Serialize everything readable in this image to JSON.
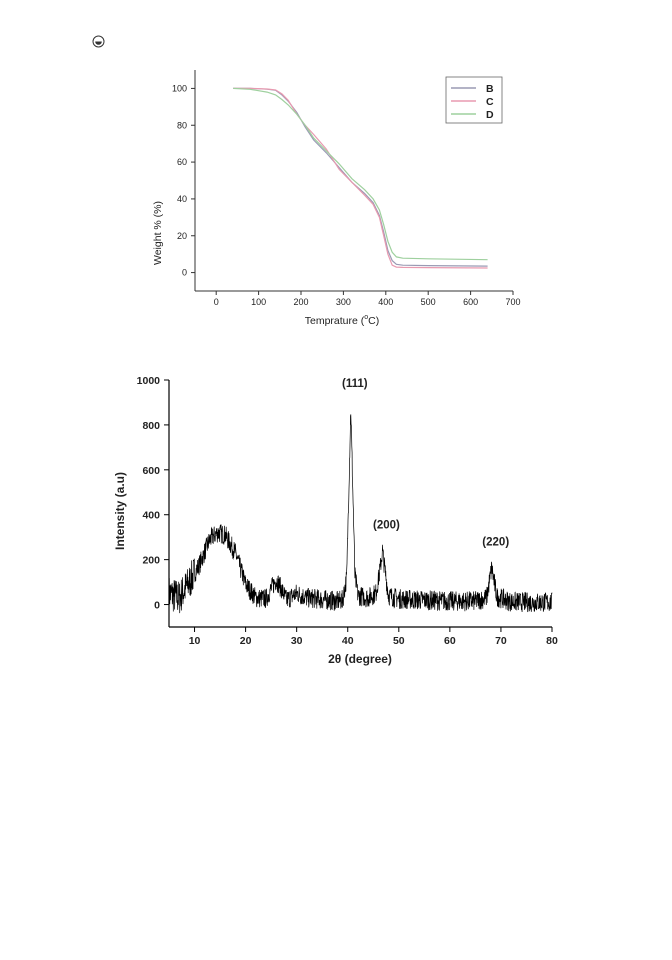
{
  "chart_data": [
    {
      "type": "line",
      "xlabel": "Temprature (",
      "xlabel_unit": "C)",
      "xlabel_superscript": "o",
      "ylabel": "Weight % (%)",
      "xlim": [
        -50,
        700
      ],
      "ylim": [
        -10,
        110
      ],
      "x_ticks": [
        0,
        100,
        200,
        300,
        400,
        500,
        600,
        700
      ],
      "y_ticks": [
        0,
        20,
        40,
        60,
        80,
        100
      ],
      "grid": false,
      "legend_position": "top-right",
      "series": [
        {
          "name": "B",
          "color": "#9a9ab4",
          "points": [
            [
              40,
              100
            ],
            [
              80,
              100
            ],
            [
              120,
              99.6
            ],
            [
              140,
              99
            ],
            [
              155,
              96.5
            ],
            [
              170,
              93
            ],
            [
              190,
              87
            ],
            [
              210,
              79
            ],
            [
              230,
              72
            ],
            [
              260,
              65
            ],
            [
              290,
              57
            ],
            [
              320,
              49
            ],
            [
              350,
              43
            ],
            [
              370,
              38
            ],
            [
              385,
              31
            ],
            [
              395,
              22
            ],
            [
              405,
              12
            ],
            [
              415,
              6.5
            ],
            [
              425,
              4.5
            ],
            [
              440,
              4
            ],
            [
              500,
              3.8
            ],
            [
              640,
              3.5
            ]
          ]
        },
        {
          "name": "C",
          "color": "#e89ab0",
          "points": [
            [
              40,
              100
            ],
            [
              80,
              100
            ],
            [
              120,
              99.7
            ],
            [
              140,
              99.2
            ],
            [
              155,
              97
            ],
            [
              170,
              93.5
            ],
            [
              190,
              86
            ],
            [
              210,
              80
            ],
            [
              230,
              75
            ],
            [
              260,
              67
            ],
            [
              290,
              56
            ],
            [
              320,
              49
            ],
            [
              350,
              42
            ],
            [
              370,
              37
            ],
            [
              385,
              30
            ],
            [
              395,
              20
            ],
            [
              405,
              10
            ],
            [
              415,
              4
            ],
            [
              425,
              3
            ],
            [
              440,
              2.8
            ],
            [
              500,
              2.7
            ],
            [
              640,
              2.5
            ]
          ]
        },
        {
          "name": "D",
          "color": "#9ed09e",
          "points": [
            [
              40,
              100
            ],
            [
              80,
              99.5
            ],
            [
              120,
              98
            ],
            [
              140,
              96.5
            ],
            [
              155,
              94
            ],
            [
              170,
              91
            ],
            [
              190,
              86
            ],
            [
              210,
              80
            ],
            [
              230,
              73
            ],
            [
              260,
              66
            ],
            [
              290,
              59
            ],
            [
              320,
              51
            ],
            [
              350,
              45
            ],
            [
              370,
              40
            ],
            [
              385,
              34
            ],
            [
              395,
              26
            ],
            [
              405,
              17
            ],
            [
              415,
              11
            ],
            [
              425,
              8.5
            ],
            [
              440,
              7.8
            ],
            [
              500,
              7.5
            ],
            [
              640,
              7
            ]
          ]
        }
      ]
    },
    {
      "type": "line",
      "xlabel": "2θ (degree)",
      "ylabel": "Intensity (a.u)",
      "xlim": [
        5,
        80
      ],
      "ylim": [
        -100,
        1000
      ],
      "x_ticks": [
        10,
        20,
        30,
        40,
        50,
        60,
        70,
        80
      ],
      "y_ticks": [
        0,
        200,
        400,
        600,
        800,
        1000
      ],
      "grid": false,
      "line_color": "#000000",
      "profile": [
        [
          5,
          50
        ],
        [
          7,
          30
        ],
        [
          9,
          100
        ],
        [
          11,
          180
        ],
        [
          13,
          290
        ],
        [
          14.5,
          320
        ],
        [
          16,
          310
        ],
        [
          18,
          230
        ],
        [
          20,
          90
        ],
        [
          22,
          30
        ],
        [
          24,
          25
        ],
        [
          25,
          70
        ],
        [
          26,
          110
        ],
        [
          27,
          70
        ],
        [
          28,
          20
        ],
        [
          30,
          50
        ],
        [
          32,
          30
        ],
        [
          34,
          25
        ],
        [
          36,
          20
        ],
        [
          38,
          15
        ],
        [
          39,
          20
        ],
        [
          39.8,
          120
        ],
        [
          40.3,
          600
        ],
        [
          40.6,
          870
        ],
        [
          40.9,
          600
        ],
        [
          41.4,
          130
        ],
        [
          42,
          40
        ],
        [
          44,
          30
        ],
        [
          45.5,
          50
        ],
        [
          46.3,
          150
        ],
        [
          46.8,
          240
        ],
        [
          47.3,
          150
        ],
        [
          48,
          40
        ],
        [
          50,
          25
        ],
        [
          55,
          20
        ],
        [
          60,
          15
        ],
        [
          65,
          15
        ],
        [
          67.2,
          30
        ],
        [
          67.8,
          110
        ],
        [
          68.2,
          165
        ],
        [
          68.6,
          110
        ],
        [
          69.2,
          35
        ],
        [
          72,
          12
        ],
        [
          76,
          10
        ],
        [
          80,
          10
        ]
      ],
      "noise_amplitude": 45,
      "peaks": [
        {
          "label": "(111)",
          "x": 40.6,
          "y": 870
        },
        {
          "label": "(200)",
          "x": 46.8,
          "y": 240
        },
        {
          "label": "(220)",
          "x": 68.2,
          "y": 165
        }
      ]
    }
  ]
}
